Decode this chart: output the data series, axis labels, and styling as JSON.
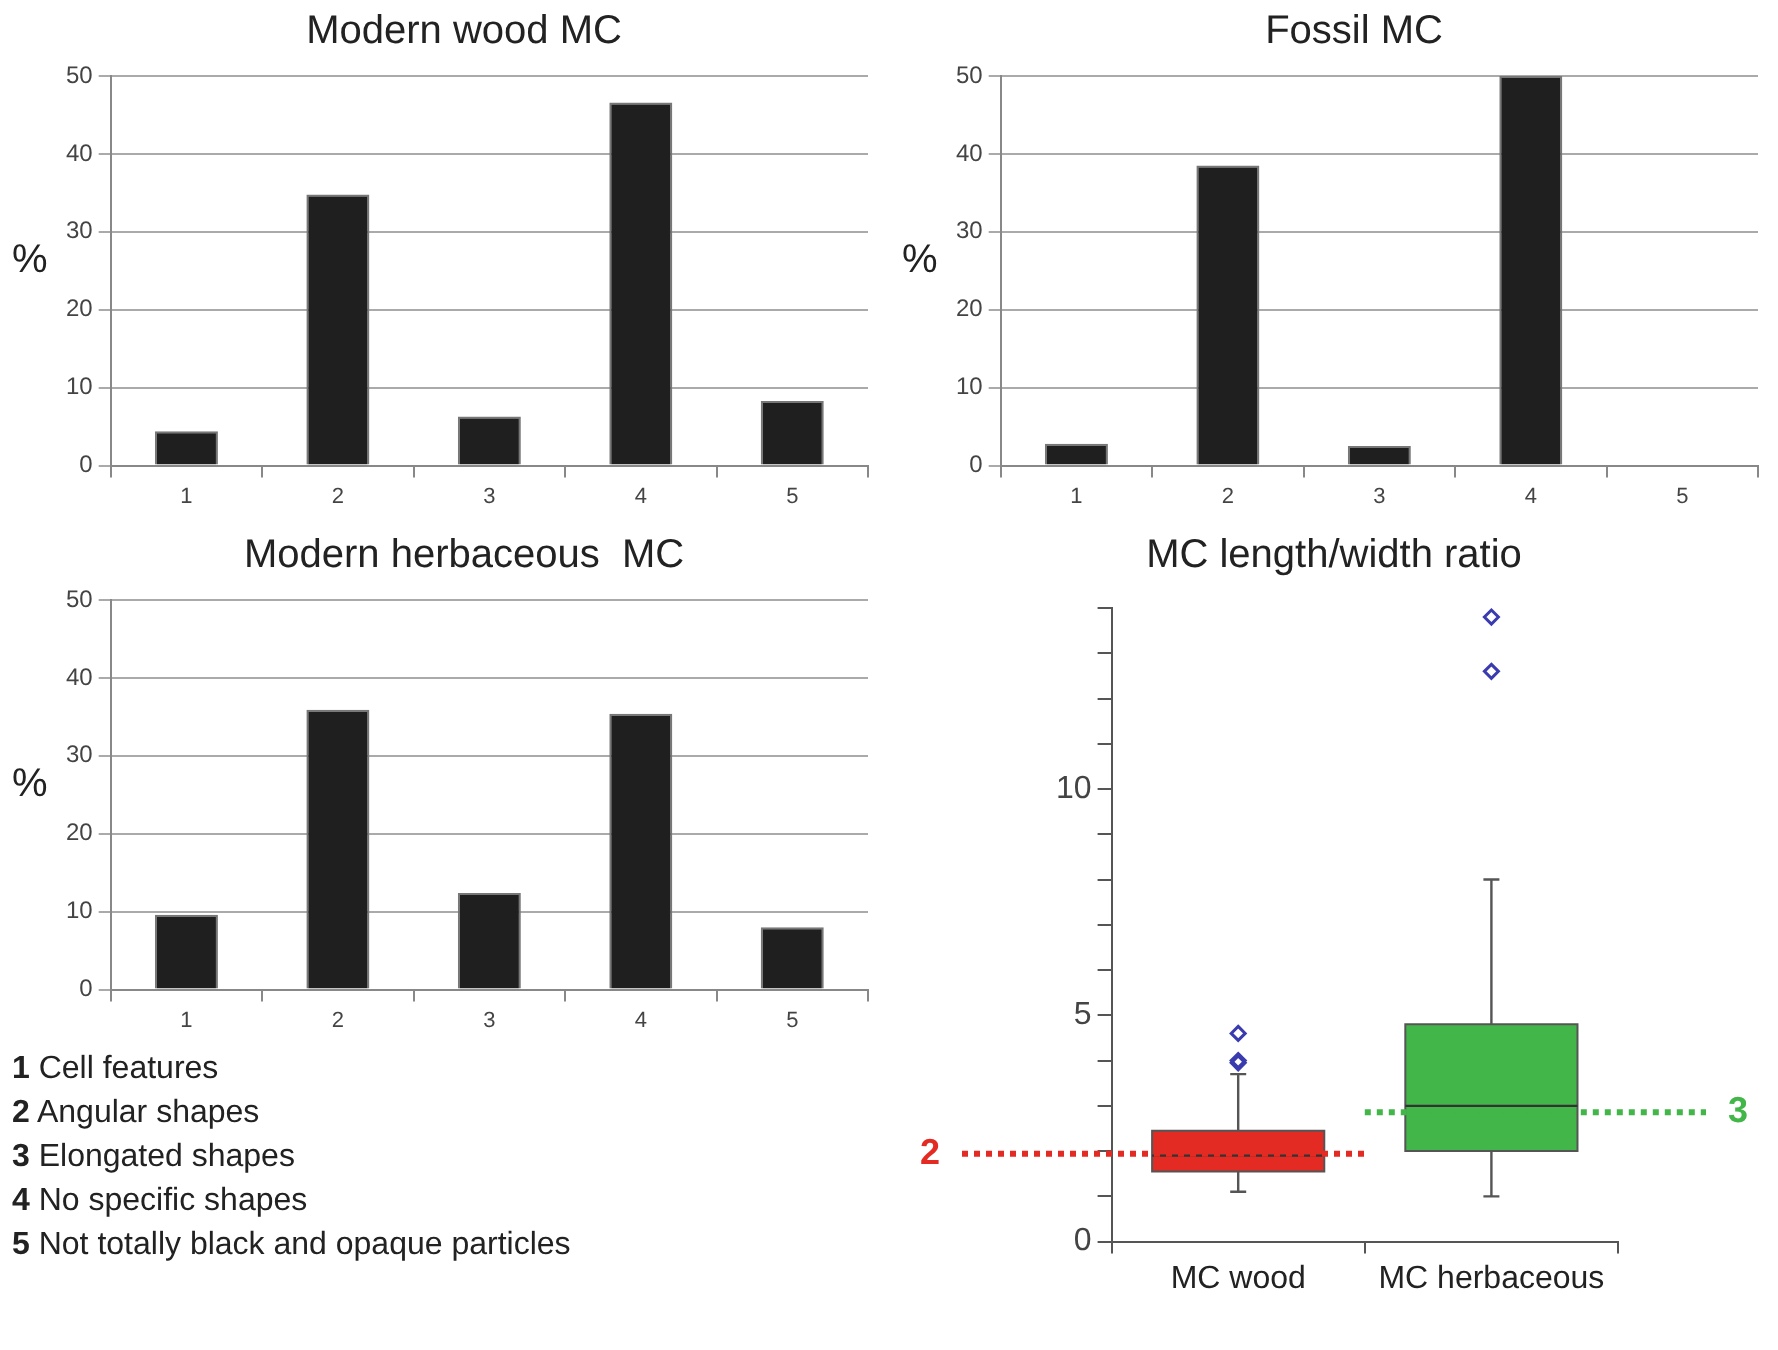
{
  "chart_data": [
    {
      "type": "bar",
      "title": "Modern wood MC",
      "ylabel": "%",
      "categories": [
        "1",
        "2",
        "3",
        "4",
        "5"
      ],
      "values": [
        4.4,
        34.8,
        6.3,
        46.6,
        8.3
      ],
      "color": "#1f1f1f",
      "ylim": [
        0,
        50
      ],
      "yticks": [
        0,
        10,
        20,
        30,
        40,
        50
      ],
      "grid": "y"
    },
    {
      "type": "bar",
      "title": "Fossil MC",
      "ylabel": "%",
      "categories": [
        "1",
        "2",
        "3",
        "4",
        "5"
      ],
      "values": [
        2.8,
        38.5,
        2.5,
        50,
        0
      ],
      "color": "#1f1f1f",
      "ylim": [
        0,
        50
      ],
      "yticks": [
        0,
        10,
        20,
        30,
        40,
        50
      ],
      "grid": "y"
    },
    {
      "type": "bar",
      "title": "Modern herbaceous  MC",
      "ylabel": "%",
      "categories": [
        "1",
        "2",
        "3",
        "4",
        "5"
      ],
      "values": [
        9.6,
        35.9,
        12.4,
        35.4,
        8.0
      ],
      "color": "#1f1f1f",
      "ylim": [
        0,
        50
      ],
      "yticks": [
        0,
        10,
        20,
        30,
        40,
        50
      ],
      "grid": "y",
      "annotations": [
        "1 Cell features",
        "2 Angular shapes",
        "3 Elongated shapes",
        "4 No specific shapes",
        "5 Not totally black and opaque particles"
      ]
    },
    {
      "type": "box",
      "title": "MC length/width ratio",
      "categories": [
        "MC wood",
        "MC herbaceous"
      ],
      "colors": [
        "#e32b24",
        "#43b649"
      ],
      "marker": "diamond",
      "boxes": [
        {
          "low": 1.1,
          "q1": 1.55,
          "median": 1.9,
          "q3": 2.45,
          "high": 3.7,
          "outliers": [
            3.95,
            4.0,
            4.6
          ]
        },
        {
          "low": 1.0,
          "q1": 2.0,
          "median": 3.0,
          "q3": 4.8,
          "high": 8.0,
          "outliers": [
            12.6,
            13.8
          ]
        }
      ],
      "ylim": [
        0,
        14
      ],
      "yticks": [
        0,
        {
          "value": 1,
          "label": null
        },
        {
          "value": 2,
          "label": null
        },
        {
          "value": 3,
          "label": null
        },
        {
          "value": 4,
          "label": null
        },
        5,
        {
          "value": 6,
          "label": null
        },
        {
          "value": 7,
          "label": null
        },
        {
          "value": 8,
          "label": null
        },
        {
          "value": 9,
          "label": null
        },
        10,
        {
          "value": 11,
          "label": null
        },
        {
          "value": 12,
          "label": null
        },
        {
          "value": 13,
          "label": null
        },
        {
          "value": 14,
          "label": null
        }
      ],
      "ref_lines": [
        {
          "axis": "y",
          "value": 1.94,
          "label": "2",
          "color": "#e32b24",
          "line_style": "dotted"
        },
        {
          "axis": "y",
          "value": 2.86,
          "label": "3",
          "color": "#43b649",
          "line_style": "dotted"
        }
      ]
    }
  ]
}
